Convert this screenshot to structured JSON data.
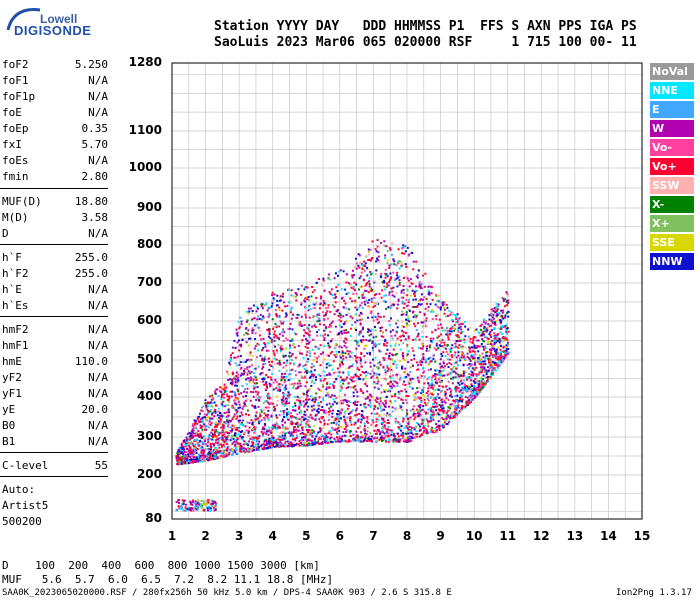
{
  "logo": {
    "line1": "Lowell",
    "line2": "DIGISONDE"
  },
  "header": {
    "line1": "Station YYYY DAY   DDD HHMMSS P1  FFS S AXN PPS IGA PS",
    "line2": "SaoLuis 2023 Mar06 065 020000 RSF     1 715 100 00- 11"
  },
  "params": [
    {
      "key": "foF2",
      "value": "5.250"
    },
    {
      "key": "foF1",
      "value": "N/A"
    },
    {
      "key": "foF1p",
      "value": "N/A"
    },
    {
      "key": "foE",
      "value": "N/A"
    },
    {
      "key": "foEp",
      "value": "0.35"
    },
    {
      "key": "fxI",
      "value": "5.70"
    },
    {
      "key": "foEs",
      "value": "N/A"
    },
    {
      "key": "fmin",
      "value": "2.80"
    },
    {
      "key": "MUF(D)",
      "value": "18.80"
    },
    {
      "key": "M(D)",
      "value": "3.58"
    },
    {
      "key": "D",
      "value": "N/A"
    },
    {
      "key": "h`F",
      "value": "255.0"
    },
    {
      "key": "h`F2",
      "value": "255.0"
    },
    {
      "key": "h`E",
      "value": "N/A"
    },
    {
      "key": "h`Es",
      "value": "N/A"
    },
    {
      "key": "hmF2",
      "value": "N/A"
    },
    {
      "key": "hmF1",
      "value": "N/A"
    },
    {
      "key": "hmE",
      "value": "110.0"
    },
    {
      "key": "yF2",
      "value": "N/A"
    },
    {
      "key": "yF1",
      "value": "N/A"
    },
    {
      "key": "yE",
      "value": "20.0"
    },
    {
      "key": "B0",
      "value": "N/A"
    },
    {
      "key": "B1",
      "value": "N/A"
    },
    {
      "key": "C-level",
      "value": "55"
    }
  ],
  "autoscale": [
    "Auto:",
    "Artist5",
    "500200"
  ],
  "legend": [
    {
      "label": "NoVal",
      "color": "#9a9a9a"
    },
    {
      "label": "NNE",
      "color": "#00e8ff"
    },
    {
      "label": "E",
      "color": "#40a8ff"
    },
    {
      "label": "W",
      "color": "#b000b0"
    },
    {
      "label": "Vo-",
      "color": "#ff40a0"
    },
    {
      "label": "Vo+",
      "color": "#ff0030"
    },
    {
      "label": "SSW",
      "color": "#ffb0b0"
    },
    {
      "label": "X-",
      "color": "#008000"
    },
    {
      "label": "X+",
      "color": "#80c060"
    },
    {
      "label": "SSE",
      "color": "#d8d800"
    },
    {
      "label": "NNW",
      "color": "#1010d0"
    }
  ],
  "bottom": {
    "d_line": "D    100  200  400  600  800 1000 1500 3000 [km]",
    "muf_line": "MUF   5.6  5.7  6.0  6.5  7.2  8.2 11.1 18.8 [MHz]"
  },
  "footer": {
    "left": "SAA0K_2023065020000.RSF / 280fx256h 50 kHz 5.0 km / DPS-4 SAA0K 903 / 2.6 S 315.8 E",
    "right": "Ion2Png 1.3.17"
  },
  "chart_data": {
    "type": "scatter",
    "xlabel": "",
    "ylabel": "",
    "xlim": [
      1,
      15
    ],
    "ylim": [
      80,
      1280
    ],
    "y_scale": "nonlinear",
    "x_ticks": [
      1,
      2,
      3,
      4,
      5,
      6,
      7,
      8,
      9,
      10,
      11,
      12,
      13,
      14,
      15
    ],
    "y_ticks": [
      80,
      200,
      300,
      400,
      500,
      600,
      700,
      800,
      900,
      1000,
      1100,
      1280
    ],
    "grid": true,
    "legend_position": "right",
    "trace_envelope": [
      {
        "x": 1.1,
        "y_min": 230,
        "y_max": 260
      },
      {
        "x": 2.0,
        "y_min": 240,
        "y_max": 400
      },
      {
        "x": 2.5,
        "y_min": 250,
        "y_max": 440
      },
      {
        "x": 3.0,
        "y_min": 260,
        "y_max": 620
      },
      {
        "x": 4.0,
        "y_min": 275,
        "y_max": 680
      },
      {
        "x": 5.0,
        "y_min": 280,
        "y_max": 700
      },
      {
        "x": 6.0,
        "y_min": 290,
        "y_max": 740
      },
      {
        "x": 7.0,
        "y_min": 290,
        "y_max": 820
      },
      {
        "x": 8.0,
        "y_min": 290,
        "y_max": 800
      },
      {
        "x": 9.0,
        "y_min": 320,
        "y_max": 660
      },
      {
        "x": 10.0,
        "y_min": 400,
        "y_max": 580
      },
      {
        "x": 11.0,
        "y_min": 520,
        "y_max": 690
      }
    ],
    "low_trace": {
      "x_range": [
        1.1,
        2.3
      ],
      "y": 120
    }
  }
}
